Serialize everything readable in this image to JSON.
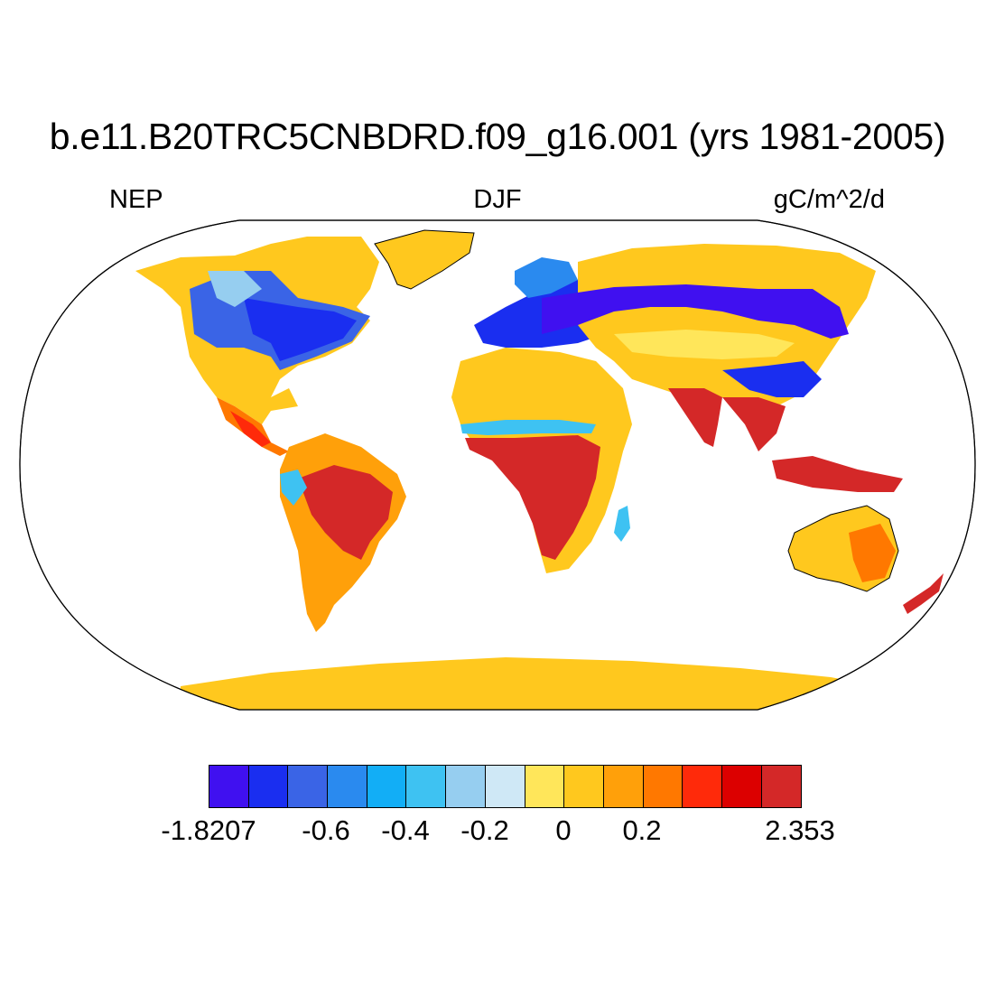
{
  "title": "b.e11.B20TRC5CNBDRD.f09_g16.001 (yrs 1981-2005)",
  "left_label": "NEP",
  "center_label": "DJF",
  "right_label": "gC/m^2/d",
  "colorbar": {
    "colors": [
      "#4010f0",
      "#1a2ef0",
      "#3a64e6",
      "#2a8aef",
      "#12aef6",
      "#3ec2f2",
      "#96cef0",
      "#cfe8f6",
      "#ffe65a",
      "#ffc81e",
      "#ffa00a",
      "#ff7800",
      "#ff2a0a",
      "#dc0000",
      "#d42828"
    ],
    "tick_labels": [
      "-1.8207",
      "-0.6",
      "-0.4",
      "-0.2",
      "0",
      "0.2",
      "2.353"
    ]
  },
  "map": {
    "projection": "Robinson",
    "season": "DJF",
    "variable": "NEP"
  }
}
